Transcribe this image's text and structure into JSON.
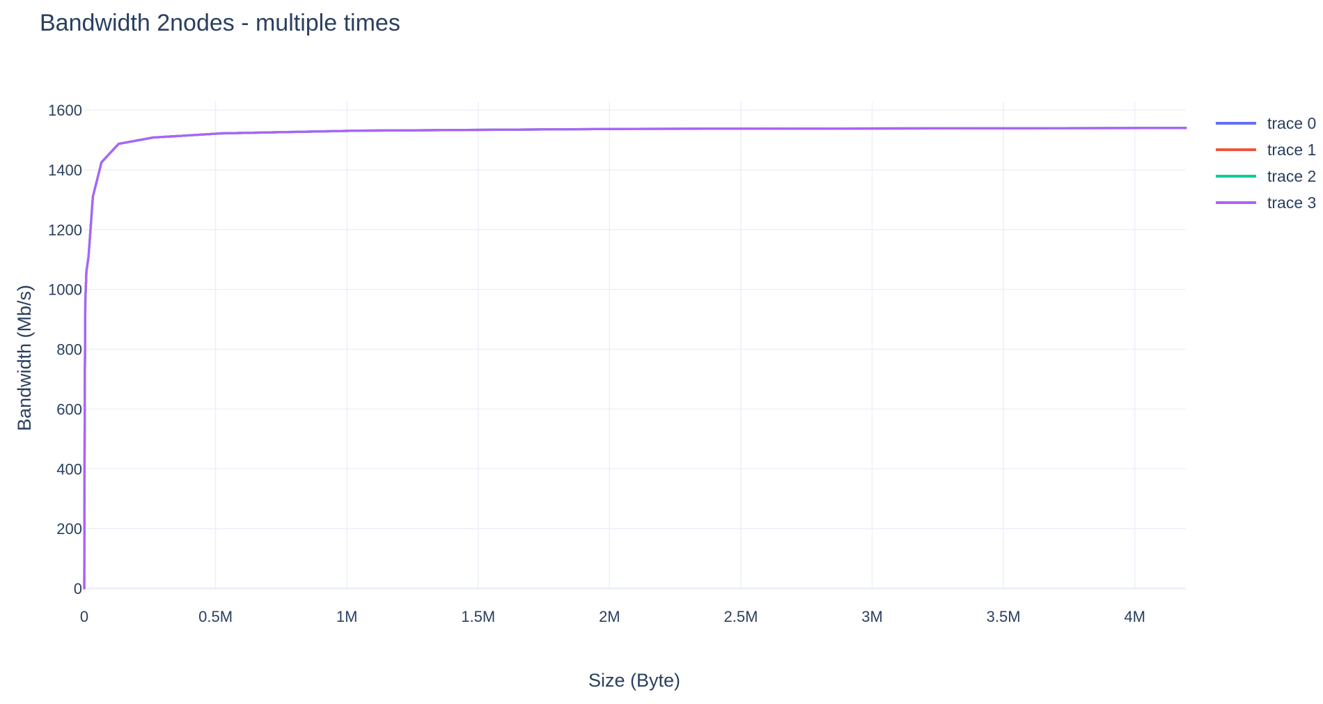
{
  "chart_data": {
    "type": "line",
    "title": "Bandwidth 2nodes - multiple times",
    "xlabel": "Size (Byte)",
    "ylabel": "Bandwidth (Mb/s)",
    "xlim": [
      0,
      4194304
    ],
    "ylim": [
      0,
      1600
    ],
    "x_ticks": [
      0,
      500000,
      1000000,
      1500000,
      2000000,
      2500000,
      3000000,
      3500000,
      4000000
    ],
    "x_tick_labels": [
      "0",
      "0.5M",
      "1M",
      "1.5M",
      "2M",
      "2.5M",
      "3M",
      "3.5M",
      "4M"
    ],
    "y_ticks": [
      0,
      200,
      400,
      600,
      800,
      1000,
      1200,
      1400,
      1600
    ],
    "y_tick_labels": [
      "0",
      "200",
      "400",
      "600",
      "800",
      "1000",
      "1200",
      "1400",
      "1600"
    ],
    "grid": true,
    "legend_position": "top-right",
    "x": [
      1,
      2,
      4,
      8,
      16,
      32,
      64,
      128,
      256,
      512,
      1024,
      2048,
      4096,
      8192,
      16384,
      32768,
      65536,
      131072,
      262144,
      524288,
      1048576,
      2097152,
      4194304
    ],
    "series": [
      {
        "name": "trace 0",
        "color": "#636efa",
        "values": [
          0.4,
          0.8,
          1.6,
          3.2,
          6.4,
          12.8,
          25.5,
          51,
          101,
          199,
          380,
          680,
          960,
          1060,
          1110,
          1310,
          1425,
          1487,
          1508,
          1522,
          1531,
          1537,
          1540
        ]
      },
      {
        "name": "trace 1",
        "color": "#ef553b",
        "values": [
          0.4,
          0.8,
          1.6,
          3.2,
          6.4,
          12.8,
          25.5,
          51,
          101,
          199,
          380,
          680,
          960,
          1060,
          1110,
          1310,
          1425,
          1487,
          1508,
          1522,
          1531,
          1537,
          1540
        ]
      },
      {
        "name": "trace 2",
        "color": "#00cc96",
        "values": [
          0.4,
          0.8,
          1.6,
          3.2,
          6.4,
          12.8,
          25.5,
          51,
          101,
          199,
          380,
          680,
          960,
          1060,
          1110,
          1310,
          1425,
          1487,
          1508,
          1522,
          1531,
          1537,
          1540
        ]
      },
      {
        "name": "trace 3",
        "color": "#ab63fa",
        "values": [
          0.4,
          0.8,
          1.6,
          3.2,
          6.4,
          12.8,
          25.5,
          51,
          101,
          199,
          380,
          680,
          960,
          1060,
          1110,
          1310,
          1425,
          1487,
          1508,
          1522,
          1531,
          1537,
          1540
        ]
      }
    ]
  }
}
